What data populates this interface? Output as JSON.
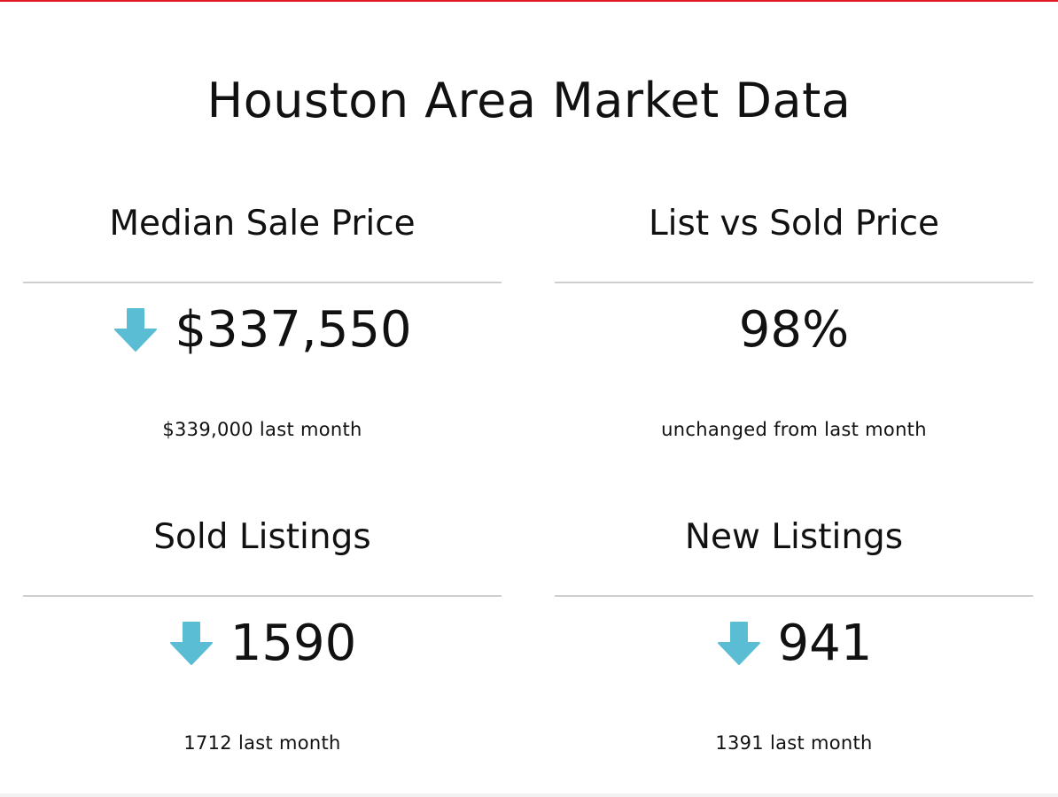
{
  "colors": {
    "accent_bar": "#e01b24",
    "trend_down": "#5bbdd4",
    "divider": "#cfcfcf",
    "text": "#111111"
  },
  "page": {
    "title": "Houston Area Market Data"
  },
  "cards": [
    {
      "title": "Median Sale Price",
      "value": "$337,550",
      "trend": "down",
      "trend_icon": "arrow-down-icon",
      "comparison": "$339,000 last month"
    },
    {
      "title": "List vs Sold Price",
      "value": "98%",
      "trend": "none",
      "trend_icon": "",
      "comparison": "unchanged from last month"
    },
    {
      "title": "Sold Listings",
      "value": "1590",
      "trend": "down",
      "trend_icon": "arrow-down-icon",
      "comparison": "1712 last month"
    },
    {
      "title": "New Listings",
      "value": "941",
      "trend": "down",
      "trend_icon": "arrow-down-icon",
      "comparison": "1391 last month"
    }
  ]
}
